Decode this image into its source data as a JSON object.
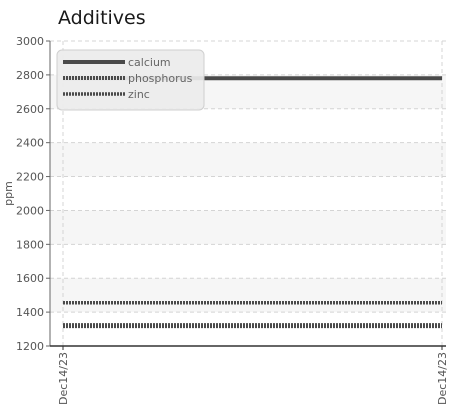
{
  "chart_data": {
    "type": "line",
    "title": "Additives",
    "xlabel": "",
    "ylabel": "ppm",
    "ylim": [
      1200,
      3000
    ],
    "yticks": [
      1200,
      1400,
      1600,
      1800,
      2000,
      2200,
      2400,
      2600,
      2800,
      3000
    ],
    "x": [
      "Dec14/23",
      "Dec14/23"
    ],
    "grid": true,
    "legend_position": "top-left",
    "series": [
      {
        "name": "calcium",
        "values": [
          2780,
          2780
        ],
        "color": "#4a4a4a",
        "style": "solid"
      },
      {
        "name": "phosphorus",
        "values": [
          1320,
          1320
        ],
        "color": "#4a4a4a",
        "style": "dotted-bold"
      },
      {
        "name": "zinc",
        "values": [
          1455,
          1455
        ],
        "color": "#4a4a4a",
        "style": "dotted"
      }
    ]
  }
}
